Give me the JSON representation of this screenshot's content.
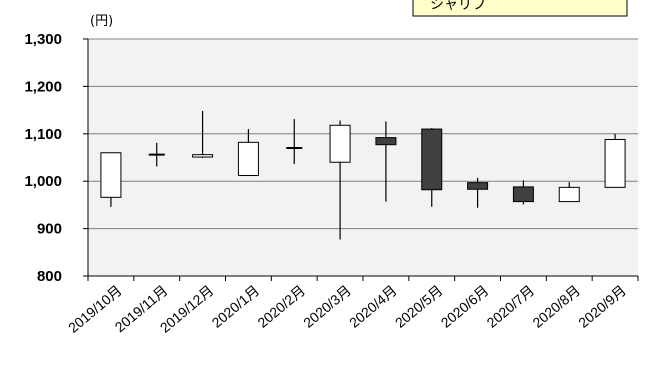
{
  "chart_data": {
    "type": "candlestick",
    "unit_label": "(円)",
    "legend_label": "シャリフ",
    "categories": [
      "2019/10月",
      "2019/11月",
      "2019/12月",
      "2020/1月",
      "2020/2月",
      "2020/3月",
      "2020/4月",
      "2020/5月",
      "2020/6月",
      "2020/7月",
      "2020/8月",
      "2020/9月"
    ],
    "open": [
      966,
      1056,
      1051,
      1012,
      1070,
      1040,
      1092,
      1110,
      997,
      988,
      957,
      987
    ],
    "close": [
      1060,
      1056,
      1056,
      1082,
      1070,
      1118,
      1077,
      982,
      983,
      957,
      987,
      1088
    ],
    "high": [
      1060,
      1081,
      1148,
      1110,
      1131,
      1128,
      1126,
      1112,
      1007,
      1002,
      998,
      1100
    ],
    "low": [
      946,
      1031,
      1049,
      1012,
      1036,
      877,
      957,
      946,
      944,
      951,
      957,
      987
    ],
    "ylim": [
      800,
      1300
    ],
    "yticks": [
      800,
      900,
      1000,
      1100,
      1200,
      1300
    ],
    "ytick_labels": [
      "800",
      "900",
      "1,000",
      "1,100",
      "1,200",
      "1,300"
    ],
    "grid": true,
    "colors": {
      "up": "#ffffff",
      "down": "#404040",
      "plot_bg": "#f2f2f2",
      "grid": "#808080",
      "legend_bg": "#ffffcc"
    }
  }
}
